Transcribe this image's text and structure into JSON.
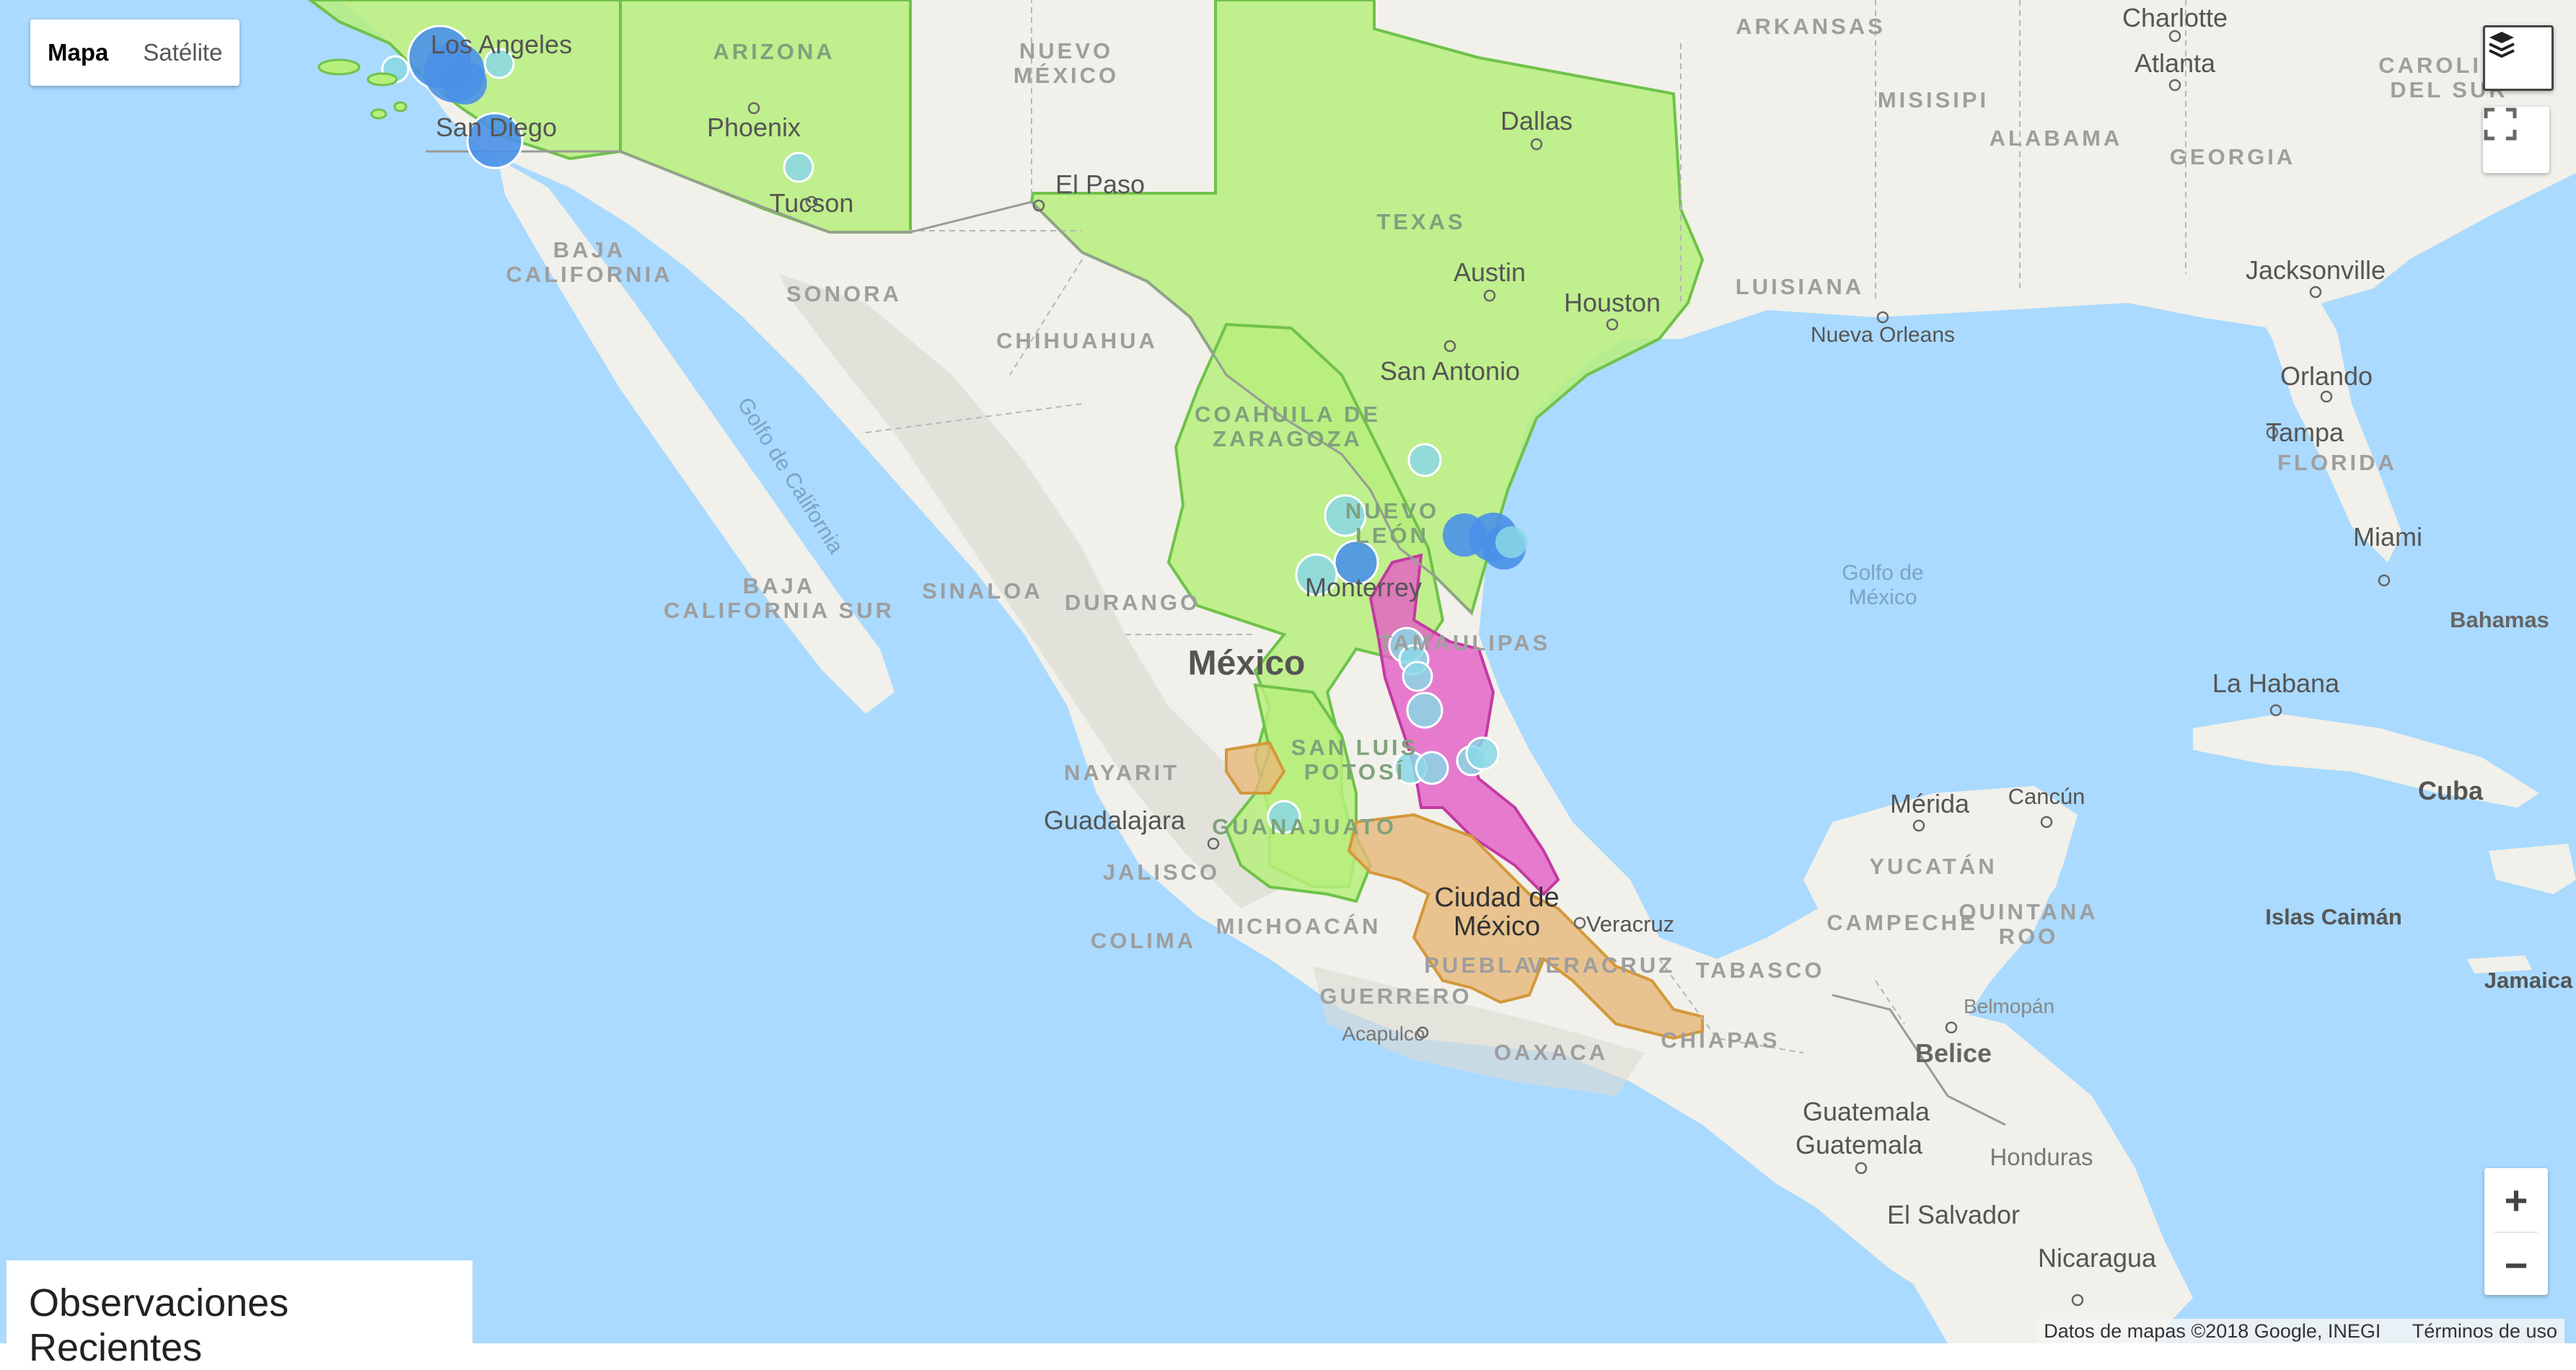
{
  "map": {
    "type_control": {
      "map_label": "Mapa",
      "satellite_label": "Satélite",
      "selected": "Mapa"
    },
    "layers_icon": "layers-icon",
    "fullscreen_icon": "fullscreen-icon",
    "zoom": {
      "in_label": "+",
      "out_label": "−"
    },
    "attribution": {
      "data": "Datos de mapas ©2018 Google, INEGI",
      "terms": "Términos de uso"
    },
    "colors": {
      "ocean": "#aadaff",
      "land": "#f1f0ea",
      "range_green": "#b7ef7d",
      "range_pink": "#e45ec6",
      "range_orange": "#e7b878",
      "observation_blue": "#4a90e8",
      "observation_teal": "#8ad7e6"
    },
    "labels": {
      "country_mexico": "México",
      "arkansas": "ARKANSAS",
      "arizona": "ARIZONA",
      "nuevo_mexico": "NUEVO\nMÉXICO",
      "misisipi": "MISISIPI",
      "alabama": "ALABAMA",
      "georgia": "GEORGIA",
      "carolina_sur": "CAROLINA\nDEL SUR",
      "texas": "TEXAS",
      "luisiana": "LUISIANA",
      "florida": "FLORIDA",
      "baja_california": "BAJA\nCALIFORNIA",
      "sonora": "SONORA",
      "chihuahua": "CHIHUAHUA",
      "coahuila": "COAHUILA DE\nZARAGOZA",
      "nuevo_leon": "NUEVO\nLEÓN",
      "baja_california_sur": "BAJA\nCALIFORNIA SUR",
      "sinaloa": "SINALOA",
      "durango": "DURANGO",
      "tamaulipas": "TAMAULIPAS",
      "nayarit": "NAYARIT",
      "san_luis": "SAN LUIS\nPOTOSÍ",
      "guanajuato": "GUANAJUATO",
      "jalisco": "JALISCO",
      "colima": "COLIMA",
      "michoacan": "MICHOACÁN",
      "puebla": "PUEBLA",
      "veracruz_state": "VERACRUZ",
      "guerrero": "GUERRERO",
      "oaxaca": "OAXACA",
      "chiapas": "CHIAPAS",
      "tabasco": "TABASCO",
      "campeche": "CAMPECHE",
      "yucatan": "YUCATÁN",
      "quintana_roo": "QUINTANA\nROO",
      "honduras": "Honduras",
      "charlotte": "Charlotte",
      "atlanta": "Atlanta",
      "dallas": "Dallas",
      "phoenix": "Phoenix",
      "tucson": "Tucson",
      "el_paso": "El Paso",
      "austin": "Austin",
      "houston": "Houston",
      "san_antonio": "San Antonio",
      "jacksonville": "Jacksonville",
      "nueva_orleans": "Nueva Orleans",
      "orlando": "Orlando",
      "tampa": "Tampa",
      "miami": "Miami",
      "bahamas": "Bahamas",
      "la_habana": "La Habana",
      "cuba": "Cuba",
      "merida": "Mérida",
      "cancun": "Cancún",
      "islas_caiman": "Islas Caimán",
      "jamaica": "Jamaica",
      "guadalajara": "Guadalajara",
      "ciudad_mexico": "Ciudad de\nMéxico",
      "veracruz_city": "Veracruz",
      "acapulco": "Acapulco",
      "belmopan": "Belmopán",
      "belice": "Belice",
      "guatemala_region": "Guatemala",
      "guatemala_city": "Guatemala",
      "el_salvador": "El Salvador",
      "nicaragua": "Nicaragua",
      "los_angeles": "Los Angeles",
      "san_diego": "San Diego",
      "monterrey": "Monterrey",
      "golfo_california": "Golfo de California",
      "golfo_mexico": "Golfo de\nMéxico"
    }
  },
  "panel": {
    "title": "Observaciones Recientes"
  }
}
